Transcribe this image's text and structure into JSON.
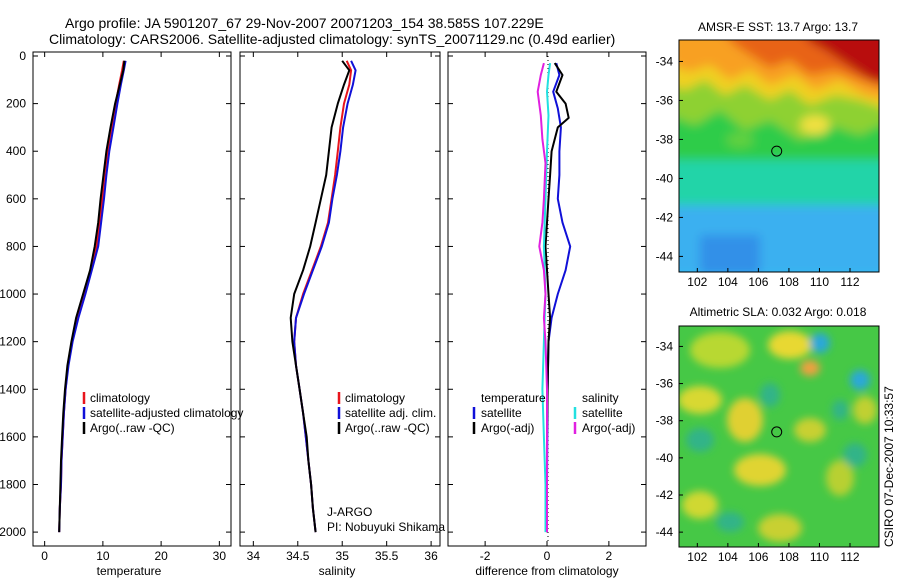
{
  "header": {
    "title_line1": "Argo profile: JA 5901207_67 29-Nov-2007 20071203_154 38.585S 107.229E",
    "title_line2": "Climatology: CARS2006. Satellite-adjusted climatology: synTS_20071129.nc (0.49d earlier)"
  },
  "colors": {
    "red": "#e8141c",
    "blue": "#1010d8",
    "black": "#000000",
    "cyan": "#22e0e0",
    "magenta": "#e020e0"
  },
  "chart_data": [
    {
      "type": "line",
      "panel": "temperature",
      "xlabel": "temperature",
      "ylabel": "",
      "xlim": [
        -2,
        32
      ],
      "ylim": [
        2050,
        0
      ],
      "xticks": [
        0,
        10,
        20,
        30
      ],
      "yticks": [
        0,
        200,
        400,
        600,
        800,
        1000,
        1200,
        1400,
        1600,
        1800,
        2000
      ],
      "legend": [
        "climatology",
        "satellite-adjusted climatology",
        "Argo(..raw -QC)"
      ],
      "series": [
        {
          "name": "climatology",
          "color": "red",
          "points": [
            [
              13.6,
              20
            ],
            [
              13.3,
              60
            ],
            [
              12.8,
              120
            ],
            [
              12.2,
              200
            ],
            [
              11.5,
              300
            ],
            [
              10.8,
              400
            ],
            [
              10.3,
              500
            ],
            [
              9.9,
              600
            ],
            [
              9.4,
              700
            ],
            [
              8.9,
              800
            ],
            [
              7.9,
              900
            ],
            [
              6.8,
              1000
            ],
            [
              5.6,
              1100
            ],
            [
              4.7,
              1200
            ],
            [
              4.0,
              1300
            ],
            [
              3.6,
              1400
            ],
            [
              3.3,
              1500
            ],
            [
              3.1,
              1600
            ],
            [
              2.9,
              1700
            ],
            [
              2.8,
              1800
            ],
            [
              2.6,
              1900
            ],
            [
              2.5,
              2000
            ]
          ]
        },
        {
          "name": "satellite-adjusted climatology",
          "color": "blue",
          "points": [
            [
              13.9,
              20
            ],
            [
              13.6,
              60
            ],
            [
              13.1,
              120
            ],
            [
              12.5,
              200
            ],
            [
              11.8,
              300
            ],
            [
              11.1,
              400
            ],
            [
              10.6,
              500
            ],
            [
              10.2,
              600
            ],
            [
              9.7,
              700
            ],
            [
              9.2,
              800
            ],
            [
              8.1,
              900
            ],
            [
              7.0,
              1000
            ],
            [
              5.8,
              1100
            ],
            [
              4.8,
              1200
            ],
            [
              4.1,
              1300
            ],
            [
              3.6,
              1400
            ],
            [
              3.3,
              1500
            ],
            [
              3.1,
              1600
            ],
            [
              2.9,
              1700
            ],
            [
              2.8,
              1800
            ],
            [
              2.6,
              1900
            ],
            [
              2.5,
              2000
            ]
          ]
        },
        {
          "name": "Argo(..raw -QC)",
          "color": "black",
          "points": [
            [
              13.7,
              20
            ],
            [
              13.5,
              60
            ],
            [
              12.9,
              120
            ],
            [
              12.1,
              200
            ],
            [
              11.3,
              300
            ],
            [
              10.6,
              400
            ],
            [
              10.1,
              500
            ],
            [
              9.6,
              600
            ],
            [
              9.2,
              700
            ],
            [
              8.6,
              800
            ],
            [
              7.8,
              900
            ],
            [
              6.6,
              1000
            ],
            [
              5.4,
              1100
            ],
            [
              4.6,
              1200
            ],
            [
              3.9,
              1300
            ],
            [
              3.5,
              1400
            ],
            [
              3.2,
              1500
            ],
            [
              3.0,
              1600
            ],
            [
              2.8,
              1700
            ],
            [
              2.7,
              1800
            ],
            [
              2.6,
              1900
            ],
            [
              2.5,
              2000
            ]
          ]
        }
      ]
    },
    {
      "type": "line",
      "panel": "salinity",
      "xlabel": "salinity",
      "xlim": [
        33.85,
        36.1
      ],
      "ylim": [
        2050,
        0
      ],
      "xticks": [
        34,
        34.5,
        35,
        35.5,
        36
      ],
      "xticklabels": [
        "34",
        "34.5",
        "35",
        "35.5",
        "36"
      ],
      "legend": [
        "climatology",
        "satellite adj. clim.",
        "Argo(..raw -QC)"
      ],
      "annotation_line1": "J-ARGO",
      "annotation_line2": "PI: Nobuyuki Shikama",
      "series": [
        {
          "name": "climatology",
          "color": "red",
          "points": [
            [
              35.05,
              20
            ],
            [
              35.1,
              60
            ],
            [
              35.08,
              120
            ],
            [
              35.02,
              200
            ],
            [
              34.98,
              300
            ],
            [
              34.95,
              400
            ],
            [
              34.92,
              500
            ],
            [
              34.88,
              600
            ],
            [
              34.84,
              700
            ],
            [
              34.76,
              800
            ],
            [
              34.66,
              900
            ],
            [
              34.56,
              1000
            ],
            [
              34.48,
              1100
            ],
            [
              34.46,
              1200
            ],
            [
              34.48,
              1300
            ],
            [
              34.52,
              1400
            ],
            [
              34.56,
              1500
            ],
            [
              34.59,
              1600
            ],
            [
              34.62,
              1700
            ],
            [
              34.65,
              1800
            ],
            [
              34.67,
              1900
            ],
            [
              34.7,
              2000
            ]
          ]
        },
        {
          "name": "satellite adj. clim.",
          "color": "blue",
          "points": [
            [
              35.1,
              20
            ],
            [
              35.15,
              60
            ],
            [
              35.12,
              120
            ],
            [
              35.06,
              200
            ],
            [
              35.01,
              300
            ],
            [
              34.98,
              400
            ],
            [
              34.94,
              500
            ],
            [
              34.89,
              600
            ],
            [
              34.85,
              700
            ],
            [
              34.77,
              800
            ],
            [
              34.67,
              900
            ],
            [
              34.57,
              1000
            ],
            [
              34.48,
              1100
            ],
            [
              34.46,
              1200
            ],
            [
              34.48,
              1300
            ],
            [
              34.52,
              1400
            ],
            [
              34.56,
              1500
            ],
            [
              34.59,
              1600
            ],
            [
              34.62,
              1700
            ],
            [
              34.65,
              1800
            ],
            [
              34.67,
              1900
            ],
            [
              34.7,
              2000
            ]
          ]
        },
        {
          "name": "Argo(..raw -QC)",
          "color": "black",
          "points": [
            [
              35.0,
              20
            ],
            [
              35.08,
              60
            ],
            [
              35.02,
              120
            ],
            [
              34.95,
              200
            ],
            [
              34.88,
              300
            ],
            [
              34.85,
              400
            ],
            [
              34.82,
              500
            ],
            [
              34.76,
              600
            ],
            [
              34.7,
              700
            ],
            [
              34.64,
              800
            ],
            [
              34.56,
              900
            ],
            [
              34.46,
              1000
            ],
            [
              34.42,
              1100
            ],
            [
              34.44,
              1200
            ],
            [
              34.48,
              1300
            ],
            [
              34.52,
              1400
            ],
            [
              34.56,
              1500
            ],
            [
              34.6,
              1600
            ],
            [
              34.62,
              1700
            ],
            [
              34.65,
              1800
            ],
            [
              34.67,
              1900
            ],
            [
              34.7,
              2000
            ]
          ]
        }
      ]
    },
    {
      "type": "line",
      "panel": "difference",
      "xlabel": "difference from climatology",
      "xlim": [
        -3.2,
        3.2
      ],
      "ylim": [
        2050,
        0
      ],
      "xticks": [
        -2,
        0,
        2
      ],
      "legend_title_temperature": "temperature",
      "legend_title_salinity": "salinity",
      "legend_temperature": [
        "satellite",
        "Argo(-adj)"
      ],
      "legend_salinity": [
        "satellite",
        "Argo(-adj)"
      ],
      "series": [
        {
          "name": "temperature satellite",
          "color": "blue",
          "points": [
            [
              0.3,
              30
            ],
            [
              0.4,
              80
            ],
            [
              0.2,
              150
            ],
            [
              0.35,
              220
            ],
            [
              0.45,
              300
            ],
            [
              0.4,
              400
            ],
            [
              0.4,
              500
            ],
            [
              0.35,
              600
            ],
            [
              0.5,
              700
            ],
            [
              0.75,
              800
            ],
            [
              0.6,
              900
            ],
            [
              0.35,
              1000
            ],
            [
              0.15,
              1100
            ],
            [
              0.05,
              1200
            ],
            [
              0.02,
              1400
            ],
            [
              0.01,
              1600
            ],
            [
              0.0,
              1800
            ],
            [
              0.0,
              2000
            ]
          ]
        },
        {
          "name": "temperature Argo(-adj)",
          "color": "black",
          "points": [
            [
              0.25,
              30
            ],
            [
              0.5,
              80
            ],
            [
              0.3,
              150
            ],
            [
              0.6,
              200
            ],
            [
              0.7,
              260
            ],
            [
              0.35,
              300
            ],
            [
              0.15,
              400
            ],
            [
              0.1,
              500
            ],
            [
              0.05,
              600
            ],
            [
              0.0,
              700
            ],
            [
              -0.05,
              800
            ],
            [
              0.0,
              900
            ],
            [
              0.05,
              1000
            ],
            [
              0.1,
              1100
            ],
            [
              0.05,
              1200
            ],
            [
              0.02,
              1400
            ],
            [
              0.0,
              1600
            ],
            [
              0.0,
              1800
            ],
            [
              0.0,
              2000
            ]
          ]
        },
        {
          "name": "salinity satellite",
          "color": "cyan",
          "points": [
            [
              0.1,
              30
            ],
            [
              0.05,
              80
            ],
            [
              0.0,
              150
            ],
            [
              0.05,
              250
            ],
            [
              0.0,
              400
            ],
            [
              -0.05,
              600
            ],
            [
              -0.1,
              800
            ],
            [
              -0.05,
              1000
            ],
            [
              -0.1,
              1200
            ],
            [
              -0.15,
              1400
            ],
            [
              -0.1,
              1600
            ],
            [
              -0.05,
              1800
            ],
            [
              -0.05,
              2000
            ]
          ]
        },
        {
          "name": "salinity Argo(-adj)",
          "color": "magenta",
          "points": [
            [
              -0.1,
              30
            ],
            [
              -0.2,
              80
            ],
            [
              -0.3,
              150
            ],
            [
              -0.2,
              250
            ],
            [
              -0.15,
              350
            ],
            [
              -0.05,
              450
            ],
            [
              -0.1,
              600
            ],
            [
              -0.15,
              700
            ],
            [
              -0.25,
              800
            ],
            [
              -0.1,
              900
            ],
            [
              -0.05,
              1000
            ],
            [
              -0.1,
              1100
            ],
            [
              -0.05,
              1200
            ],
            [
              0.0,
              1400
            ],
            [
              0.0,
              1600
            ],
            [
              0.0,
              1800
            ],
            [
              0.0,
              2000
            ]
          ]
        }
      ]
    },
    {
      "type": "heatmap",
      "panel": "sst_map",
      "title": "AMSR-E SST: 13.7 Argo: 13.7",
      "xlim": [
        100.8,
        113.9
      ],
      "ylim": [
        -44.8,
        -32.9
      ],
      "xticks": [
        102,
        104,
        106,
        108,
        110,
        112
      ],
      "yticks": [
        -34,
        -36,
        -38,
        -40,
        -42,
        -44
      ],
      "marker": [
        107.2,
        -38.6
      ]
    },
    {
      "type": "heatmap",
      "panel": "sla_map",
      "title": "Altimetric SLA: 0.032 Argo: 0.018",
      "xlim": [
        100.8,
        113.9
      ],
      "ylim": [
        -44.8,
        -32.9
      ],
      "xticks": [
        102,
        104,
        106,
        108,
        110,
        112
      ],
      "yticks": [
        -34,
        -36,
        -38,
        -40,
        -42,
        -44
      ],
      "marker": [
        107.2,
        -38.6
      ],
      "side_label": "CSIRO 07-Dec-2007 10:33:57"
    }
  ]
}
